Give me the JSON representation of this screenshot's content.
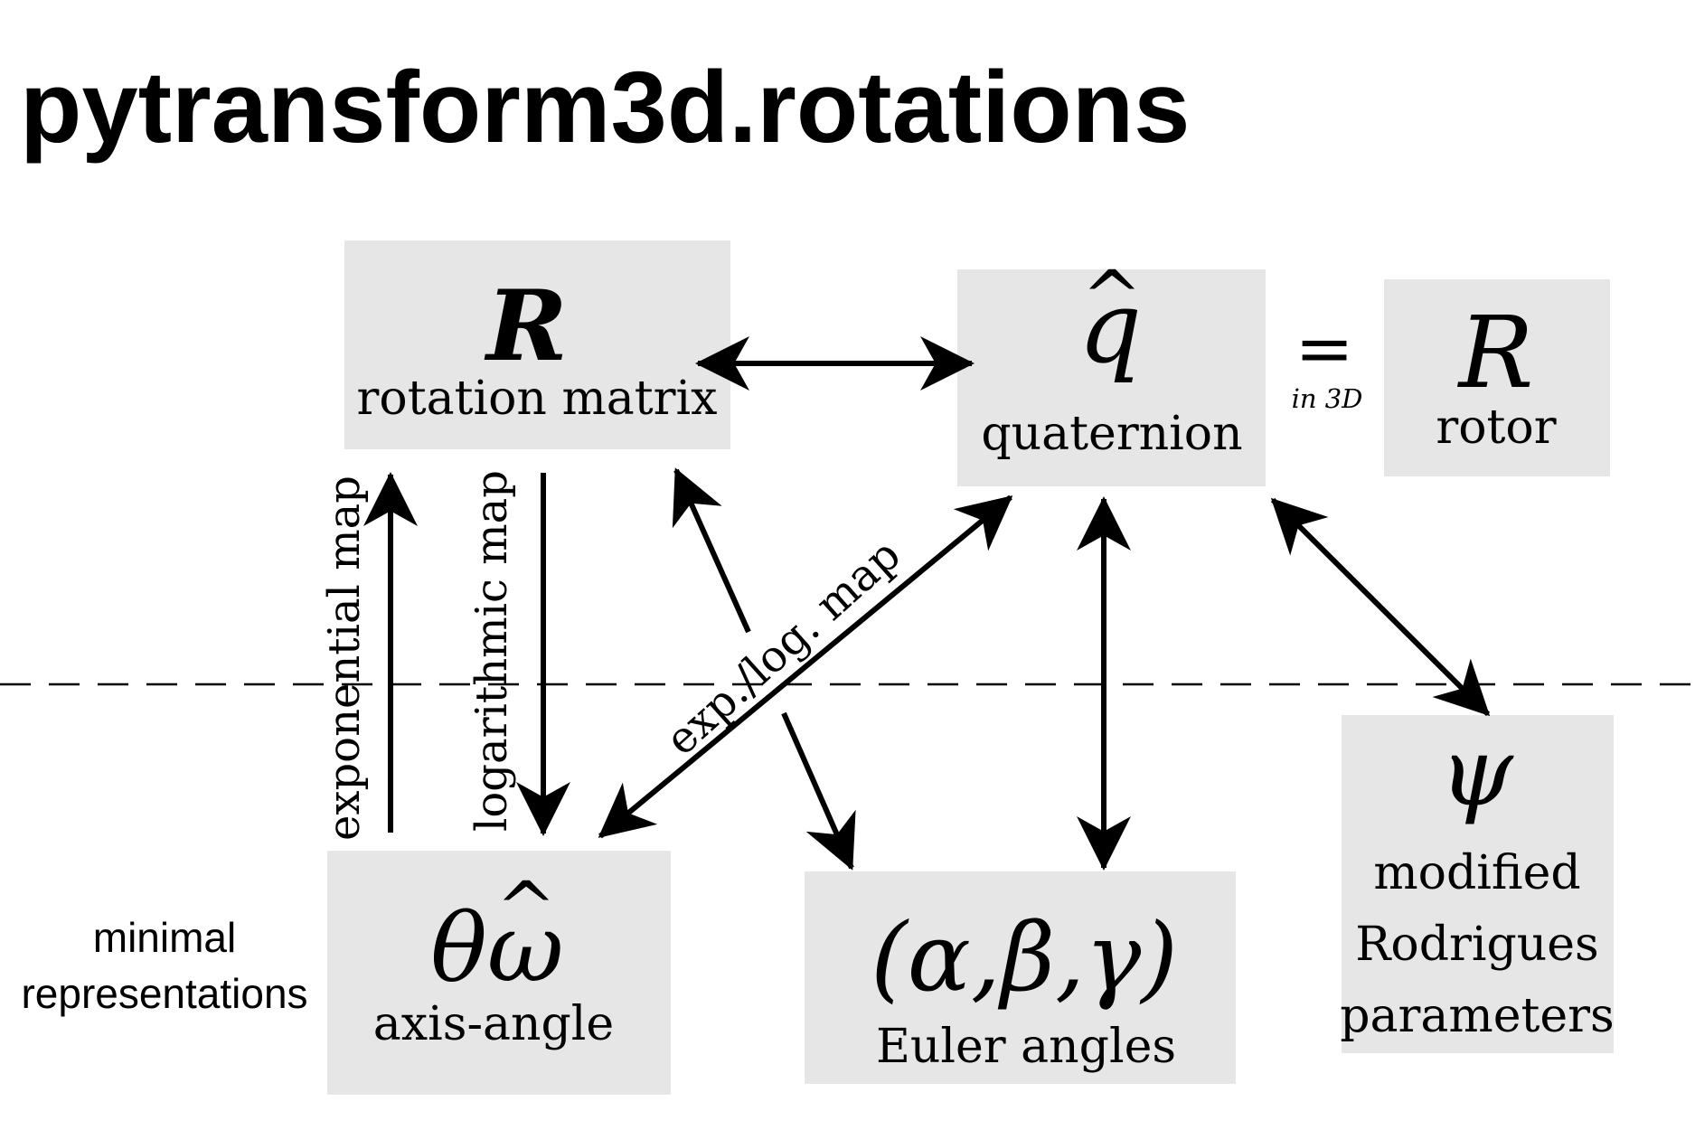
{
  "title": "pytransform3d.rotations",
  "nodes": {
    "rotation_matrix": {
      "symbol": "R",
      "label": "rotation matrix"
    },
    "quaternion": {
      "symbol": "q",
      "hat": "^",
      "label": "quaternion"
    },
    "rotor": {
      "symbol": "R",
      "label": "rotor"
    },
    "axis_angle": {
      "symbol": "θω",
      "hat": "^",
      "label": "axis-angle"
    },
    "euler_angles": {
      "symbol": "(α,β,γ)",
      "label": "Euler angles"
    },
    "mrp": {
      "symbol": "ψ",
      "label_lines": [
        "modified",
        "Rodrigues",
        "parameters"
      ]
    }
  },
  "equivalence": {
    "sign": "=",
    "note": "in 3D"
  },
  "edges": {
    "exponential_map": "exponential map",
    "logarithmic_map": "logarithmic map",
    "exp_log_map": "exp./log. map"
  },
  "region_label_lines": [
    "minimal",
    "representations"
  ],
  "colors": {
    "box": "#e6e6e6",
    "ink": "#000000"
  }
}
